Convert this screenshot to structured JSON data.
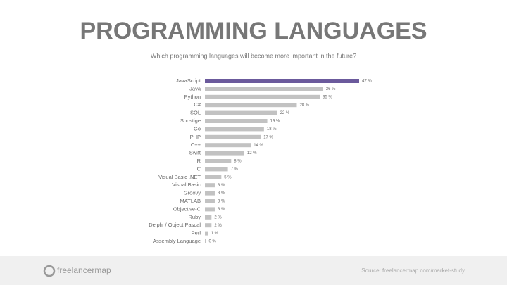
{
  "chart_data": {
    "type": "hbar",
    "title": "PROGRAMMING LANGUAGES",
    "subtitle": "Which programming languages will become more important in the future?",
    "categories": [
      "JavaScript",
      "Java",
      "Python",
      "C#",
      "SQL",
      "Sonstige",
      "Go",
      "PHP",
      "C++",
      "Swift",
      "R",
      "C",
      "Visual Basic .NET",
      "Visual Basic",
      "Groovy",
      "MATLAB",
      "Objective-C",
      "Ruby",
      "Delphi / Object Pascal",
      "Perl",
      "Assembly Language"
    ],
    "values": [
      47,
      36,
      35,
      28,
      22,
      19,
      18,
      17,
      14,
      12,
      8,
      7,
      5,
      3,
      3,
      3,
      3,
      2,
      2,
      1,
      0
    ],
    "value_labels": [
      "47 %",
      "36 %",
      "35 %",
      "28 %",
      "22 %",
      "19 %",
      "18 %",
      "17 %",
      "14 %",
      "12 %",
      "8 %",
      "7 %",
      "5 %",
      "3 %",
      "3 %",
      "3 %",
      "3 %",
      "2 %",
      "2 %",
      "1 %",
      "0 %"
    ],
    "colors": [
      "#6b5a9c",
      "#c2c2c2",
      "#c2c2c2",
      "#c2c2c2",
      "#c2c2c2",
      "#c2c2c2",
      "#c2c2c2",
      "#c2c2c2",
      "#c2c2c2",
      "#c2c2c2",
      "#c2c2c2",
      "#c2c2c2",
      "#c2c2c2",
      "#c2c2c2",
      "#c2c2c2",
      "#c2c2c2",
      "#c2c2c2",
      "#c2c2c2",
      "#c2c2c2",
      "#c2c2c2",
      "#c2c2c2"
    ]
  },
  "footer": {
    "logo": "freelancermap",
    "source": "Source: freelancermap.com/market-study"
  }
}
